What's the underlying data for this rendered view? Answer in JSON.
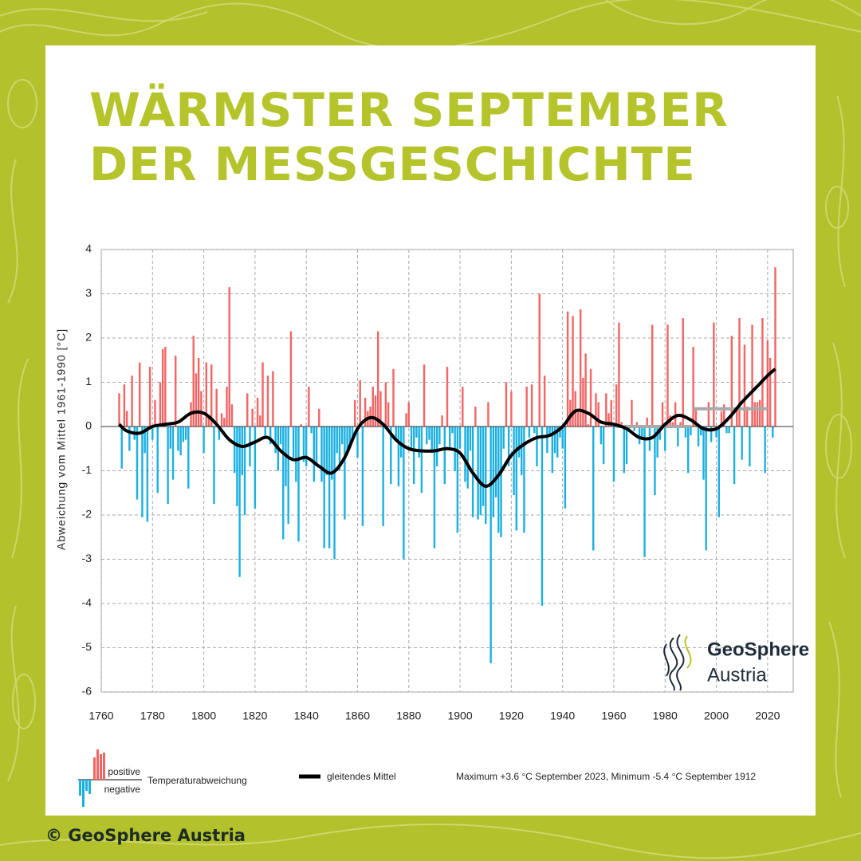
{
  "title_lines": [
    "WÄRMSTER SEPTEMBER",
    "DER MESSGESCHICHTE"
  ],
  "copyright": "© GeoSphere Austria",
  "logo": {
    "name": "GeoSphere",
    "sub": "Austria"
  },
  "chart_data": {
    "type": "bar",
    "y_label": "Abweichung vom Mittel 1961-1990  [°C]",
    "x": [
      1767,
      1768,
      1769,
      1770,
      1771,
      1772,
      1773,
      1774,
      1775,
      1776,
      1777,
      1778,
      1779,
      1780,
      1781,
      1782,
      1783,
      1784,
      1785,
      1786,
      1787,
      1788,
      1789,
      1790,
      1791,
      1792,
      1793,
      1794,
      1795,
      1796,
      1797,
      1798,
      1799,
      1800,
      1801,
      1802,
      1803,
      1804,
      1805,
      1806,
      1807,
      1808,
      1809,
      1810,
      1811,
      1812,
      1813,
      1814,
      1815,
      1816,
      1817,
      1818,
      1819,
      1820,
      1821,
      1822,
      1823,
      1824,
      1825,
      1826,
      1827,
      1828,
      1829,
      1830,
      1831,
      1832,
      1833,
      1834,
      1835,
      1836,
      1837,
      1838,
      1839,
      1840,
      1841,
      1842,
      1843,
      1844,
      1845,
      1846,
      1847,
      1848,
      1849,
      1850,
      1851,
      1852,
      1853,
      1854,
      1855,
      1856,
      1857,
      1858,
      1859,
      1860,
      1861,
      1862,
      1863,
      1864,
      1865,
      1866,
      1867,
      1868,
      1869,
      1870,
      1871,
      1872,
      1873,
      1874,
      1875,
      1876,
      1877,
      1878,
      1879,
      1880,
      1881,
      1882,
      1883,
      1884,
      1885,
      1886,
      1887,
      1888,
      1889,
      1890,
      1891,
      1892,
      1893,
      1894,
      1895,
      1896,
      1897,
      1898,
      1899,
      1900,
      1901,
      1902,
      1903,
      1904,
      1905,
      1906,
      1907,
      1908,
      1909,
      1910,
      1911,
      1912,
      1913,
      1914,
      1915,
      1916,
      1917,
      1918,
      1919,
      1920,
      1921,
      1922,
      1923,
      1924,
      1925,
      1926,
      1927,
      1928,
      1929,
      1930,
      1931,
      1932,
      1933,
      1934,
      1935,
      1936,
      1937,
      1938,
      1939,
      1940,
      1941,
      1942,
      1943,
      1944,
      1945,
      1946,
      1947,
      1948,
      1949,
      1950,
      1951,
      1952,
      1953,
      1954,
      1955,
      1956,
      1957,
      1958,
      1959,
      1960,
      1961,
      1962,
      1963,
      1964,
      1965,
      1966,
      1967,
      1968,
      1969,
      1970,
      1971,
      1972,
      1973,
      1974,
      1975,
      1976,
      1977,
      1978,
      1979,
      1980,
      1981,
      1982,
      1983,
      1984,
      1985,
      1986,
      1987,
      1988,
      1989,
      1990,
      1991,
      1992,
      1993,
      1994,
      1995,
      1996,
      1997,
      1998,
      1999,
      2000,
      2001,
      2002,
      2003,
      2004,
      2005,
      2006,
      2007,
      2008,
      2009,
      2010,
      2011,
      2012,
      2013,
      2014,
      2015,
      2016,
      2017,
      2018,
      2019,
      2020,
      2021,
      2022,
      2023
    ],
    "values": [
      0.75,
      -0.95,
      0.95,
      0.35,
      -0.55,
      1.15,
      -0.3,
      -1.65,
      1.45,
      -2.05,
      -0.6,
      -2.15,
      1.35,
      -0.3,
      0.6,
      -1.5,
      1.0,
      1.75,
      1.8,
      -1.75,
      -0.5,
      -1.2,
      1.6,
      -0.55,
      -0.65,
      -0.35,
      -0.3,
      -1.4,
      0.55,
      2.05,
      1.2,
      1.55,
      0.8,
      -0.6,
      1.45,
      0.2,
      1.4,
      -1.75,
      0.85,
      -0.3,
      0.3,
      0.2,
      0.9,
      3.15,
      0.5,
      -1.05,
      -1.8,
      -3.4,
      -1.1,
      -2.0,
      0.75,
      -0.9,
      0.4,
      -1.85,
      0.65,
      0.25,
      1.45,
      -0.25,
      1.15,
      -0.4,
      1.25,
      -0.6,
      -1.0,
      -0.4,
      -2.55,
      -1.35,
      -2.2,
      2.15,
      -0.7,
      -1.25,
      -2.6,
      0.05,
      -0.8,
      -0.9,
      0.9,
      -0.15,
      -1.25,
      -0.9,
      0.4,
      -1.25,
      -2.75,
      -1.1,
      -2.75,
      -1.2,
      -3.0,
      -0.6,
      -1.0,
      -0.4,
      -2.1,
      -0.6,
      -0.5,
      -0.3,
      0.6,
      -0.7,
      1.05,
      -2.25,
      0.65,
      0.35,
      0.45,
      0.9,
      0.7,
      2.15,
      0.8,
      -2.25,
      1.0,
      0.55,
      -1.3,
      1.3,
      -0.3,
      -1.35,
      -0.7,
      -3.0,
      0.3,
      0.55,
      -0.55,
      -1.3,
      -0.25,
      -0.7,
      -1.5,
      1.4,
      -0.4,
      -0.3,
      -0.6,
      -2.75,
      -0.9,
      -0.4,
      0.25,
      -1.3,
      1.35,
      -0.5,
      -0.15,
      -1.0,
      -2.4,
      -0.5,
      0.9,
      -1.25,
      -1.4,
      -0.55,
      -2.05,
      0.45,
      -2.1,
      -2.0,
      -1.8,
      -2.2,
      0.55,
      -5.35,
      -2.05,
      -1.6,
      -2.4,
      -2.5,
      -0.5,
      1.0,
      -0.9,
      0.8,
      -1.55,
      -2.35,
      -0.7,
      -1.1,
      -2.4,
      0.9,
      -0.25,
      0.95,
      -0.15,
      -0.9,
      3.0,
      -4.05,
      1.15,
      -0.6,
      -0.2,
      -1.05,
      -0.6,
      -0.7,
      -0.25,
      -0.5,
      -1.85,
      2.6,
      0.6,
      2.5,
      0.8,
      0.4,
      2.65,
      1.1,
      1.65,
      0.05,
      1.3,
      -2.8,
      0.75,
      0.55,
      -0.4,
      -0.85,
      0.75,
      0.3,
      0.6,
      -1.25,
      0.95,
      2.35,
      0.1,
      -1.05,
      -0.85,
      -0.1,
      0.6,
      -0.1,
      0.1,
      -0.4,
      -0.3,
      -2.95,
      0.2,
      -0.55,
      2.3,
      -1.55,
      -0.7,
      -0.3,
      0.55,
      -0.55,
      2.3,
      0.25,
      0.1,
      0.55,
      -0.45,
      0.1,
      2.45,
      -0.25,
      -1.05,
      -0.2,
      1.8,
      0.4,
      -0.45,
      -0.2,
      -1.2,
      -2.8,
      0.55,
      -0.35,
      2.35,
      -0.25,
      -2.05,
      0.35,
      0.5,
      -0.15,
      -0.15,
      2.05,
      -1.3,
      0.4,
      2.45,
      -0.75,
      1.85,
      0.45,
      -0.9,
      2.3,
      0.55,
      0.55,
      0.6,
      2.45,
      -1.05,
      1.95,
      1.55,
      -0.25,
      3.6
    ],
    "colors": {
      "positive": "#f26565",
      "negative": "#1ab0e2"
    },
    "smooth": {
      "name": "gleitendes Mittel",
      "color": "#000000",
      "x": [
        1767,
        1770,
        1775,
        1780,
        1785,
        1790,
        1795,
        1800,
        1805,
        1810,
        1815,
        1820,
        1825,
        1830,
        1835,
        1840,
        1845,
        1850,
        1855,
        1860,
        1865,
        1870,
        1875,
        1880,
        1885,
        1890,
        1895,
        1900,
        1905,
        1910,
        1915,
        1920,
        1925,
        1930,
        1935,
        1940,
        1945,
        1950,
        1955,
        1960,
        1965,
        1970,
        1975,
        1980,
        1985,
        1990,
        1995,
        2000,
        2005,
        2010,
        2015,
        2020,
        2023
      ],
      "values": [
        0.05,
        -0.1,
        -0.15,
        0.0,
        0.05,
        0.1,
        0.3,
        0.3,
        0.05,
        -0.3,
        -0.45,
        -0.35,
        -0.25,
        -0.55,
        -0.75,
        -0.7,
        -0.9,
        -1.05,
        -0.7,
        -0.05,
        0.2,
        0.05,
        -0.3,
        -0.5,
        -0.55,
        -0.55,
        -0.5,
        -0.6,
        -1.05,
        -1.35,
        -1.1,
        -0.65,
        -0.4,
        -0.25,
        -0.2,
        0.0,
        0.35,
        0.3,
        0.1,
        0.05,
        -0.05,
        -0.25,
        -0.25,
        0.05,
        0.25,
        0.15,
        -0.05,
        -0.05,
        0.2,
        0.55,
        0.85,
        1.15,
        1.3
      ]
    },
    "reference_lines": [
      {
        "x": [
          1961,
          1990
        ],
        "value": 0,
        "color": "#aaaaaa"
      },
      {
        "x": [
          1991,
          2020
        ],
        "value": 0.4,
        "color": "#aaaaaa"
      }
    ],
    "xlim": [
      1760,
      2030
    ],
    "ylim": [
      -6,
      4
    ],
    "xticks": [
      1760,
      1780,
      1800,
      1820,
      1840,
      1860,
      1880,
      1900,
      1920,
      1940,
      1960,
      1980,
      2000,
      2020
    ],
    "yticks": [
      -6,
      -5,
      -4,
      -3,
      -2,
      -1,
      0,
      1,
      2,
      3,
      4
    ],
    "grid": true,
    "legend": {
      "positive": "positive",
      "negative": "negative",
      "bars": "Temperaturabweichung",
      "note": "Maximum +3.6 °C September 2023, Minimum -5.4 °C September 1912"
    }
  }
}
